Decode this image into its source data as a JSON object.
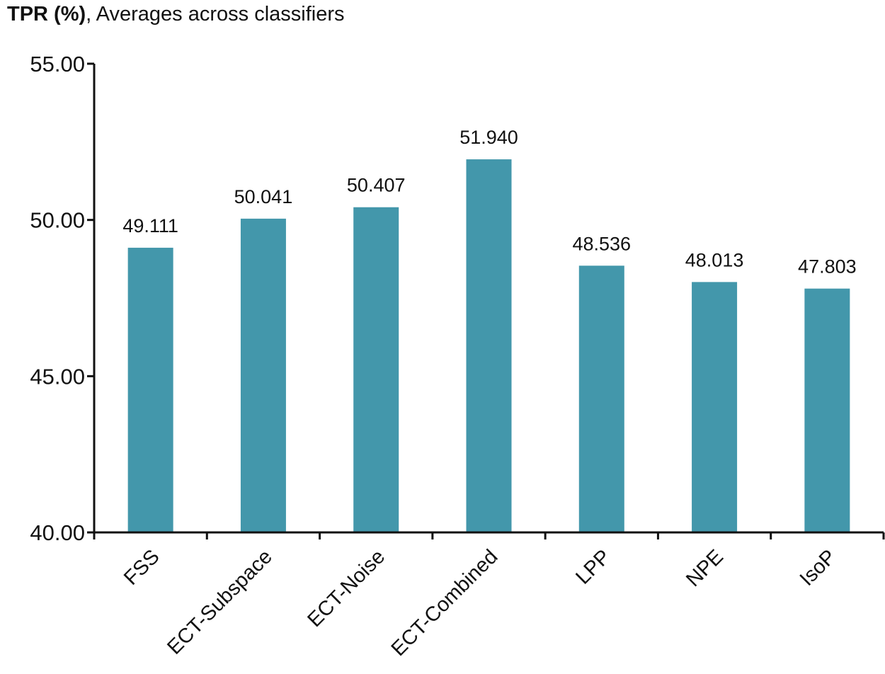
{
  "chart_data": {
    "type": "bar",
    "title_bold": "TPR (%)",
    "title_rest": ", Averages across classifiers",
    "categories": [
      "FSS",
      "ECT-Subspace",
      "ECT-Noise",
      "ECT-Combined",
      "LPP",
      "NPE",
      "IsoP"
    ],
    "values": [
      49.111,
      50.041,
      50.407,
      51.94,
      48.536,
      48.013,
      47.803
    ],
    "data_labels": [
      "49.111",
      "50.041",
      "50.407",
      "51.940",
      "48.536",
      "48.013",
      "47.803"
    ],
    "ylim": [
      40,
      55
    ],
    "yticks": [
      40,
      45,
      50,
      55
    ],
    "ytick_labels": [
      "40.00",
      "45.00",
      "50.00",
      "55.00"
    ],
    "xlabel": "",
    "ylabel": "",
    "grid": false,
    "legend": "none",
    "bar_color": "#4397ab"
  }
}
